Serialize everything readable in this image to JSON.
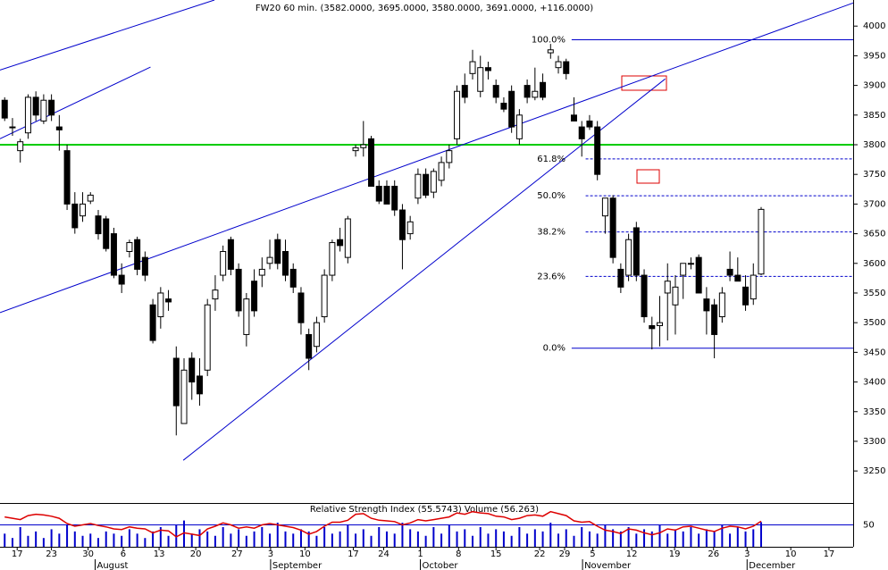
{
  "chart_data": [
    {
      "type": "candlestick",
      "title": "FW20 60 min. (3582.0000, 3695.0000, 3580.0000, 3691.0000, +116.0000)",
      "ylim": [
        3196,
        4044
      ],
      "yticks": [
        3250,
        3300,
        3350,
        3400,
        3450,
        3500,
        3550,
        3600,
        3650,
        3700,
        3750,
        3800,
        3850,
        3900,
        3950,
        4000
      ],
      "xlim": [
        -0.6,
        108.8
      ],
      "xticks": [
        {
          "value": 1.6,
          "label": "17"
        },
        {
          "value": 6.0,
          "label": "23"
        },
        {
          "value": 10.7,
          "label": "30"
        },
        {
          "value": 15.2,
          "label": "6"
        },
        {
          "value": 19.8,
          "label": "13"
        },
        {
          "value": 24.5,
          "label": "20"
        },
        {
          "value": 29.8,
          "label": "27"
        },
        {
          "value": 34.1,
          "label": "3"
        },
        {
          "value": 38.5,
          "label": "10"
        },
        {
          "value": 44.7,
          "label": "17"
        },
        {
          "value": 48.6,
          "label": "24"
        },
        {
          "value": 53.3,
          "label": "1"
        },
        {
          "value": 58.2,
          "label": "8"
        },
        {
          "value": 63.0,
          "label": "15"
        },
        {
          "value": 68.6,
          "label": "22"
        },
        {
          "value": 71.8,
          "label": "29"
        },
        {
          "value": 75.4,
          "label": "5"
        },
        {
          "value": 80.4,
          "label": "12"
        },
        {
          "value": 85.9,
          "label": "19"
        },
        {
          "value": 90.9,
          "label": "26"
        },
        {
          "value": 95.2,
          "label": "3"
        },
        {
          "value": 100.8,
          "label": "10"
        },
        {
          "value": 105.7,
          "label": "17"
        }
      ],
      "month_ticks": [
        {
          "value": 11.6,
          "label": "August"
        },
        {
          "value": 34.1,
          "label": "September"
        },
        {
          "value": 53.3,
          "label": "October"
        },
        {
          "value": 74.1,
          "label": "November"
        },
        {
          "value": 95.2,
          "label": "December"
        }
      ],
      "up_color": "#ffffff",
      "down_color": "#000000",
      "values": [
        [
          3875,
          3880,
          3840,
          3845
        ],
        [
          3830,
          3845,
          3815,
          3830
        ],
        [
          3790,
          3810,
          3770,
          3805
        ],
        [
          3820,
          3885,
          3810,
          3880
        ],
        [
          3880,
          3890,
          3840,
          3850
        ],
        [
          3840,
          3885,
          3835,
          3875
        ],
        [
          3875,
          3885,
          3840,
          3850
        ],
        [
          3830,
          3850,
          3790,
          3825
        ],
        [
          3790,
          3800,
          3690,
          3700
        ],
        [
          3700,
          3720,
          3650,
          3660
        ],
        [
          3680,
          3720,
          3670,
          3700
        ],
        [
          3705,
          3720,
          3700,
          3715
        ],
        [
          3680,
          3690,
          3640,
          3650
        ],
        [
          3675,
          3680,
          3620,
          3625
        ],
        [
          3650,
          3660,
          3575,
          3580
        ],
        [
          3580,
          3600,
          3550,
          3565
        ],
        [
          3620,
          3640,
          3610,
          3635
        ],
        [
          3640,
          3645,
          3580,
          3590
        ],
        [
          3610,
          3620,
          3570,
          3580
        ],
        [
          3530,
          3540,
          3465,
          3470
        ],
        [
          3510,
          3560,
          3490,
          3550
        ],
        [
          3540,
          3555,
          3520,
          3535
        ],
        [
          3440,
          3460,
          3310,
          3360
        ],
        [
          3330,
          3440,
          3330,
          3420
        ],
        [
          3440,
          3450,
          3370,
          3400
        ],
        [
          3410,
          3440,
          3360,
          3380
        ],
        [
          3420,
          3540,
          3410,
          3530
        ],
        [
          3540,
          3580,
          3520,
          3555
        ],
        [
          3580,
          3630,
          3570,
          3620
        ],
        [
          3640,
          3645,
          3580,
          3590
        ],
        [
          3590,
          3600,
          3510,
          3520
        ],
        [
          3480,
          3550,
          3460,
          3540
        ],
        [
          3570,
          3590,
          3510,
          3520
        ],
        [
          3580,
          3610,
          3560,
          3590
        ],
        [
          3600,
          3640,
          3590,
          3610
        ],
        [
          3640,
          3650,
          3590,
          3600
        ],
        [
          3620,
          3640,
          3570,
          3580
        ],
        [
          3590,
          3600,
          3550,
          3560
        ],
        [
          3550,
          3560,
          3480,
          3500
        ],
        [
          3480,
          3490,
          3420,
          3440
        ],
        [
          3460,
          3510,
          3450,
          3500
        ],
        [
          3510,
          3590,
          3500,
          3580
        ],
        [
          3580,
          3640,
          3570,
          3635
        ],
        [
          3640,
          3660,
          3620,
          3630
        ],
        [
          3610,
          3680,
          3600,
          3675
        ],
        [
          3790,
          3800,
          3780,
          3795
        ],
        [
          3795,
          3840,
          3780,
          3800
        ],
        [
          3810,
          3815,
          3730,
          3730
        ],
        [
          3730,
          3740,
          3700,
          3705
        ],
        [
          3730,
          3740,
          3700,
          3700
        ],
        [
          3730,
          3740,
          3680,
          3690
        ],
        [
          3690,
          3700,
          3590,
          3640
        ],
        [
          3650,
          3680,
          3640,
          3670
        ],
        [
          3710,
          3760,
          3700,
          3750
        ],
        [
          3750,
          3760,
          3710,
          3715
        ],
        [
          3720,
          3760,
          3710,
          3755
        ],
        [
          3740,
          3780,
          3730,
          3770
        ],
        [
          3770,
          3800,
          3760,
          3790
        ],
        [
          3810,
          3900,
          3800,
          3890
        ],
        [
          3900,
          3920,
          3870,
          3880
        ],
        [
          3920,
          3960,
          3910,
          3940
        ],
        [
          3890,
          3950,
          3880,
          3930
        ],
        [
          3930,
          3940,
          3910,
          3925
        ],
        [
          3900,
          3910,
          3870,
          3880
        ],
        [
          3870,
          3880,
          3855,
          3860
        ],
        [
          3890,
          3900,
          3820,
          3830
        ],
        [
          3810,
          3860,
          3800,
          3850
        ],
        [
          3900,
          3910,
          3870,
          3880
        ],
        [
          3880,
          3930,
          3875,
          3890
        ],
        [
          3905,
          3920,
          3875,
          3880
        ],
        [
          3955,
          3970,
          3945,
          3960
        ],
        [
          3930,
          3950,
          3920,
          3940
        ],
        [
          3940,
          3945,
          3910,
          3920
        ],
        [
          3850,
          3880,
          3840,
          3840
        ],
        [
          3830,
          3840,
          3780,
          3810
        ],
        [
          3840,
          3850,
          3825,
          3830
        ],
        [
          3830,
          3840,
          3740,
          3750
        ],
        [
          3680,
          3710,
          3650,
          3710
        ],
        [
          3710,
          3715,
          3600,
          3610
        ],
        [
          3590,
          3600,
          3550,
          3560
        ],
        [
          3580,
          3650,
          3570,
          3640
        ],
        [
          3660,
          3670,
          3570,
          3580
        ],
        [
          3580,
          3590,
          3500,
          3510
        ],
        [
          3495,
          3510,
          3455,
          3490
        ],
        [
          3495,
          3545,
          3460,
          3500
        ],
        [
          3550,
          3600,
          3470,
          3570
        ],
        [
          3530,
          3580,
          3480,
          3560
        ],
        [
          3580,
          3600,
          3540,
          3600
        ],
        [
          3600,
          3610,
          3590,
          3600
        ],
        [
          3610,
          3615,
          3550,
          3550
        ],
        [
          3540,
          3560,
          3480,
          3520
        ],
        [
          3530,
          3540,
          3440,
          3480
        ],
        [
          3510,
          3560,
          3500,
          3550
        ],
        [
          3590,
          3620,
          3570,
          3580
        ],
        [
          3580,
          3610,
          3570,
          3570
        ],
        [
          3560,
          3580,
          3520,
          3530
        ],
        [
          3540,
          3600,
          3530,
          3580
        ],
        [
          3582,
          3695,
          3580,
          3691
        ]
      ],
      "hline": {
        "value": 3800,
        "color": "#00cc00"
      },
      "trendline_color": "#0000cc",
      "trendlines": [
        {
          "x": [
            -0.6,
            26.9
          ],
          "y": [
            3926,
            4044
          ]
        },
        {
          "x": [
            -0.6,
            18.7
          ],
          "y": [
            3810,
            3931
          ]
        },
        {
          "x": [
            -0.6,
            108.8
          ],
          "y": [
            3517,
            4039
          ]
        },
        {
          "x": [
            22.9,
            84.7
          ],
          "y": [
            3268,
            3911
          ]
        }
      ],
      "fib_color": "#0000cc",
      "fib_levels": [
        {
          "label": "100.0%",
          "value": 3977,
          "start": 72.7,
          "style": "solid"
        },
        {
          "label": "61.8%",
          "value": 3776,
          "start": 74.5,
          "style": "dotted"
        },
        {
          "label": "50.0%",
          "value": 3714,
          "start": 74.5,
          "style": "dotted"
        },
        {
          "label": "38.2%",
          "value": 3653,
          "start": 74.5,
          "style": "dotted"
        },
        {
          "label": "23.6%",
          "value": 3578,
          "start": 74.5,
          "style": "dotted"
        },
        {
          "label": "0.0%",
          "value": 3457,
          "start": 72.7,
          "style": "solid"
        }
      ]
    },
    {
      "type": "rsi-volume",
      "label": "Relative Strength Index (55.5743) Volume (56.263)",
      "xlim": [
        -0.6,
        108.8
      ],
      "ylim": [
        17,
        83
      ],
      "yticks": [
        50
      ],
      "y2lim": [
        0,
        100
      ],
      "series": [
        {
          "color": "#dd0000",
          "values": [
            62,
            60,
            58,
            64,
            66,
            65,
            63,
            60,
            52,
            48,
            50,
            52,
            49,
            47,
            44,
            43,
            47,
            45,
            44,
            38,
            42,
            41,
            32,
            38,
            36,
            34,
            44,
            48,
            53,
            50,
            45,
            47,
            45,
            50,
            52,
            50,
            48,
            46,
            42,
            36,
            40,
            48,
            54,
            54,
            57,
            66,
            67,
            60,
            57,
            56,
            55,
            50,
            53,
            58,
            56,
            58,
            60,
            62,
            68,
            66,
            70,
            68,
            67,
            63,
            62,
            58,
            60,
            64,
            65,
            63,
            70,
            67,
            64,
            56,
            54,
            55,
            48,
            42,
            40,
            37,
            44,
            42,
            38,
            35,
            38,
            44,
            42,
            47,
            48,
            45,
            42,
            40,
            45,
            48,
            47,
            44,
            48,
            55.5743
          ]
        },
        {
          "color": "#0000cc",
          "axis": "y2",
          "values": [
            30,
            20,
            45,
            25,
            35,
            20,
            40,
            30,
            50,
            35,
            25,
            30,
            20,
            35,
            30,
            25,
            40,
            30,
            20,
            35,
            45,
            25,
            50,
            60,
            30,
            40,
            35,
            25,
            45,
            30,
            40,
            25,
            35,
            45,
            30,
            55,
            35,
            30,
            40,
            35,
            25,
            45,
            30,
            35,
            50,
            30,
            40,
            25,
            45,
            35,
            30,
            55,
            40,
            35,
            25,
            45,
            30,
            50,
            35,
            40,
            25,
            45,
            30,
            40,
            35,
            25,
            45,
            30,
            40,
            35,
            55,
            30,
            40,
            25,
            45,
            35,
            30,
            50,
            40,
            35,
            45,
            30,
            40,
            35,
            50,
            30,
            40,
            35,
            45,
            30,
            40,
            35,
            50,
            30,
            45,
            35,
            40,
            56.263
          ]
        }
      ]
    }
  ]
}
